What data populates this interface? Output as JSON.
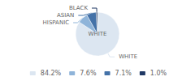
{
  "chart_data": {
    "type": "pie",
    "categories": [
      "WHITE",
      "HISPANIC",
      "ASIAN",
      "BLACK"
    ],
    "values": [
      84.2,
      7.6,
      7.1,
      1.0
    ],
    "value_labels": [
      "84.2%",
      "7.6%",
      "7.1%",
      "1.0%"
    ],
    "colors": [
      "#dce6f1",
      "#8fb4d9",
      "#4472a8",
      "#1f3864"
    ],
    "annotations": [
      "WHITE"
    ],
    "legend": "bottom"
  }
}
